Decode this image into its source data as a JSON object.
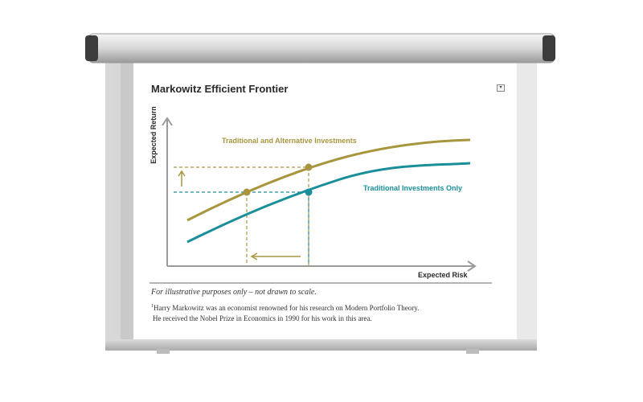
{
  "title": "Markowitz Efficient Frontier",
  "axes": {
    "y_label": "Expected Return",
    "x_label": "Expected Risk"
  },
  "curves": {
    "alternative_label": "Traditional and Alternative Investments",
    "traditional_label": "Traditional Investments Only"
  },
  "colors": {
    "alternative": "#a8963e",
    "traditional": "#1a8f9a",
    "axis": "#9a9a9a"
  },
  "note": "For illustrative purposes only – not drawn to scale.",
  "footnote": {
    "marker": "1",
    "line1": "Harry Markowitz was an economist renowned for his research on Modern Portfolio Theory.",
    "line2": "He received the Nobel Prize in Economics in 1990 for his work in this area."
  },
  "icons": {
    "menu": "dropdown-icon"
  }
}
